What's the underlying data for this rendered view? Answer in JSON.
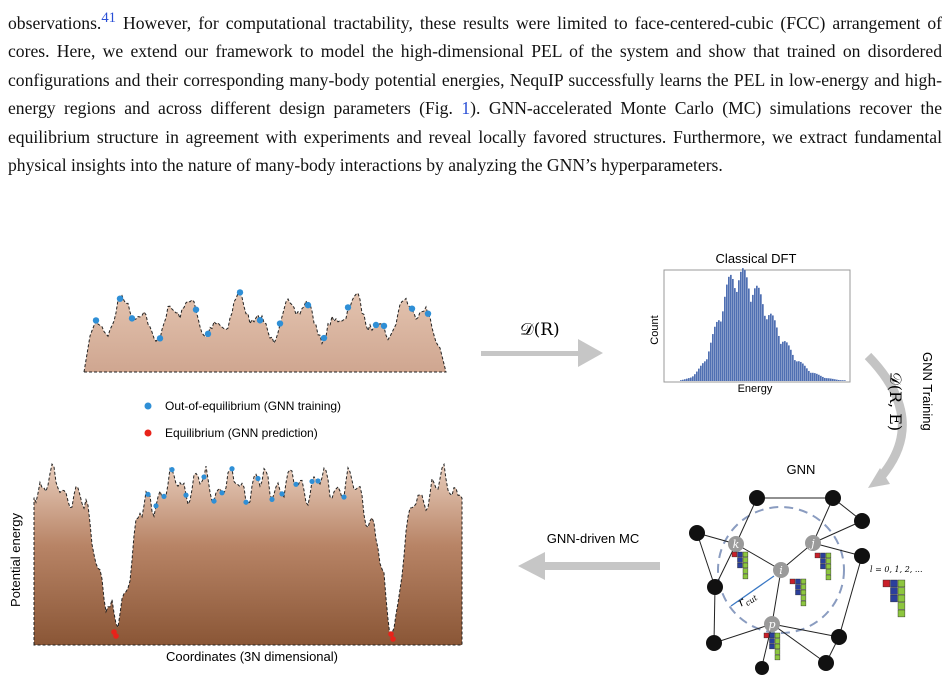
{
  "paragraph": {
    "l1": "observations.",
    "l1_cite": "41",
    "l1_rest": " However, for computational tractability, these results were limited to face-centered-cubic",
    "l2": "(FCC) arrangement of cores. Here, we extend our framework to model the high-dimensional PEL of the",
    "l3": "system and show that trained on disordered configurations and their corresponding many-body potential",
    "l4": "energies, NequIP successfully learns the PEL in low-energy and high-energy regions and across different",
    "l5a": "design parameters (Fig. ",
    "l5_ref": "1",
    "l5b": "). GNN-accelerated Monte Carlo (MC) simulations recover the equilibrium structure",
    "l6": "in agreement with experiments and reveal locally favored structures. Furthermore, we extract fundamental",
    "l7": "physical insights into the nature of many-body interactions by analyzing the GNN’s hyperparameters."
  },
  "figure": {
    "histogram_title": "Classical DFT",
    "histogram_ylabel": "Count",
    "histogram_xlabel": "Energy",
    "arrow_top_label": "𝒟(R)",
    "gnn_training_label": "GNN Training",
    "gnn_training_math": "𝒟(R, E)",
    "legend_blue": "Out-of-equilibrium (GNN training)",
    "legend_red": "Equilibrium (GNN prediction)",
    "pel_ylabel": "Potential energy",
    "pel_xlabel": "Coordinates (3N dimensional)",
    "gnn_label": "GNN",
    "gnn_mc_label": "GNN-driven MC",
    "node_k": "k",
    "node_i": "i",
    "node_j": "j",
    "node_p": "p",
    "rcut_label": "r",
    "rcut_sub": "cut",
    "l_label": "l = 0, 1, 2, ...",
    "colors": {
      "blue_point": "#2f8fd6",
      "red_point": "#e8231a",
      "gray_arrow": "#c4c4c4",
      "hist_bar": "#4f6fb2",
      "landscape_top": "#dcbba8",
      "landscape_bottom": "#8f5a3a"
    }
  }
}
